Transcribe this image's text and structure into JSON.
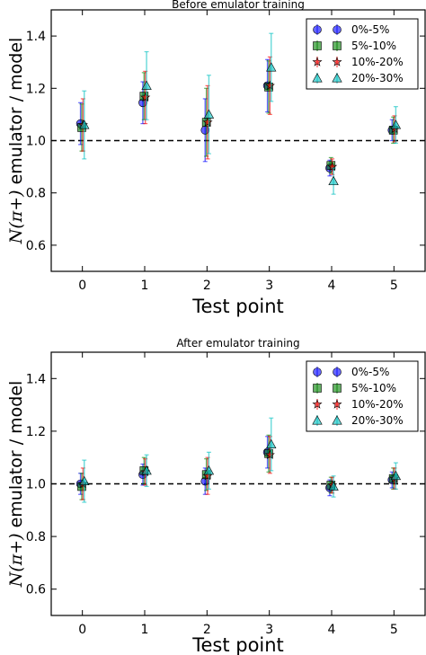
{
  "chart_data": [
    {
      "type": "scatter",
      "title": "Before emulator training",
      "xlabel": "Test point",
      "ylabel_math": "N(π+)",
      "ylabel_text": "emulator / model",
      "x": [
        0,
        1,
        2,
        3,
        4,
        5
      ],
      "xlim": [
        -0.5,
        5.5
      ],
      "ylim": [
        0.5,
        1.5
      ],
      "xticks": [
        0,
        1,
        2,
        3,
        4,
        5
      ],
      "yticks": [
        0.6,
        0.8,
        1.0,
        1.2,
        1.4
      ],
      "reference_line": 1.0,
      "legend_position": "top-right",
      "series": [
        {
          "name": "0%-5%",
          "marker": "circle",
          "color": "#0000ff",
          "values": [
            1.065,
            1.145,
            1.04,
            1.21,
            0.895,
            1.04
          ],
          "errors": [
            0.08,
            0.08,
            0.12,
            0.1,
            0.03,
            0.04
          ]
        },
        {
          "name": "5%-10%",
          "marker": "square",
          "color": "#008000",
          "values": [
            1.05,
            1.17,
            1.07,
            1.205,
            0.905,
            1.04
          ],
          "errors": [
            0.09,
            0.09,
            0.13,
            0.1,
            0.03,
            0.05
          ]
        },
        {
          "name": "10%-20%",
          "marker": "star",
          "color": "#ff0000",
          "values": [
            1.06,
            1.165,
            1.07,
            1.21,
            0.9,
            1.045
          ],
          "errors": [
            0.1,
            0.1,
            0.14,
            0.11,
            0.03,
            0.05
          ]
        },
        {
          "name": "20%-30%",
          "marker": "triangle",
          "color": "#00bfbf",
          "values": [
            1.06,
            1.21,
            1.1,
            1.28,
            0.845,
            1.06
          ],
          "errors": [
            0.13,
            0.13,
            0.15,
            0.13,
            0.05,
            0.07
          ]
        }
      ]
    },
    {
      "type": "scatter",
      "title": "After emulator training",
      "xlabel": "Test point",
      "ylabel_math": "N(π+)",
      "ylabel_text": "emulator / model",
      "x": [
        0,
        1,
        2,
        3,
        4,
        5
      ],
      "xlim": [
        -0.5,
        5.5
      ],
      "ylim": [
        0.5,
        1.5
      ],
      "xticks": [
        0,
        1,
        2,
        3,
        4,
        5
      ],
      "yticks": [
        0.6,
        0.8,
        1.0,
        1.2,
        1.4
      ],
      "reference_line": 1.0,
      "legend_position": "top-right",
      "series": [
        {
          "name": "0%-5%",
          "marker": "circle",
          "color": "#0000ff",
          "values": [
            1.0,
            1.035,
            1.01,
            1.12,
            0.985,
            1.015
          ],
          "errors": [
            0.04,
            0.04,
            0.05,
            0.06,
            0.03,
            0.03
          ]
        },
        {
          "name": "5%-10%",
          "marker": "square",
          "color": "#008000",
          "values": [
            0.99,
            1.05,
            1.035,
            1.115,
            0.995,
            1.02
          ],
          "errors": [
            0.05,
            0.05,
            0.06,
            0.07,
            0.03,
            0.04
          ]
        },
        {
          "name": "10%-20%",
          "marker": "star",
          "color": "#ff0000",
          "values": [
            1.0,
            1.045,
            1.03,
            1.11,
            0.995,
            1.02
          ],
          "errors": [
            0.06,
            0.05,
            0.07,
            0.07,
            0.03,
            0.04
          ]
        },
        {
          "name": "20%-30%",
          "marker": "triangle",
          "color": "#00bfbf",
          "values": [
            1.01,
            1.05,
            1.05,
            1.15,
            0.99,
            1.03
          ],
          "errors": [
            0.08,
            0.06,
            0.07,
            0.1,
            0.04,
            0.05
          ]
        }
      ]
    }
  ]
}
